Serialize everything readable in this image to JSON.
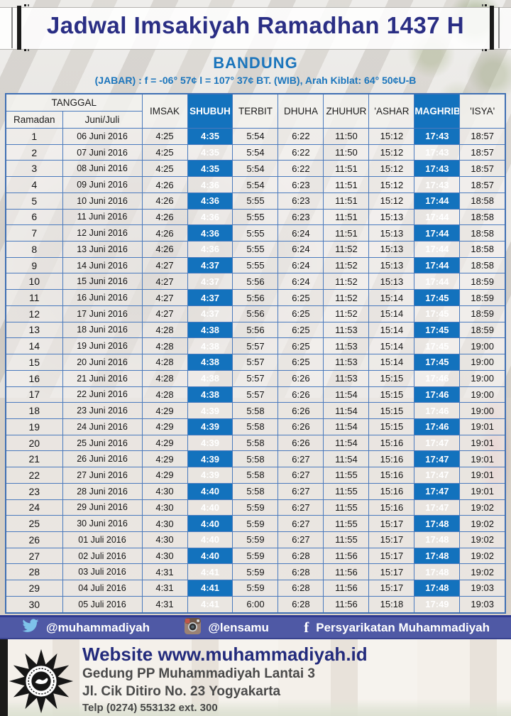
{
  "header": {
    "title": "Jadwal Imsakiyah Ramadhan 1437 H",
    "city": "BANDUNG",
    "coordinates_line": "(JABAR) : f = -06° 57¢  l = 107° 37¢  BT. (WIB), Arah Kiblat: 64° 50¢U-B"
  },
  "table": {
    "group_header": "TANGGAL",
    "sub_headers": [
      "Ramadan",
      "Juni/Juli"
    ],
    "time_columns": [
      "IMSAK",
      "SHUBUH",
      "TERBIT",
      "DHUHA",
      "ZHUHUR",
      "'ASHAR",
      "MAGHRIB",
      "'ISYA'"
    ],
    "highlighted_columns": [
      "SHUBUH",
      "MAGHRIB"
    ],
    "rows": [
      [
        "1",
        "06 Juni 2016",
        "4:25",
        "4:35",
        "5:54",
        "6:22",
        "11:50",
        "15:12",
        "17:43",
        "18:57"
      ],
      [
        "2",
        "07 Juni 2016",
        "4:25",
        "4:35",
        "5:54",
        "6:22",
        "11:50",
        "15:12",
        "17:43",
        "18:57"
      ],
      [
        "3",
        "08 Juni 2016",
        "4:25",
        "4:35",
        "5:54",
        "6:22",
        "11:51",
        "15:12",
        "17:43",
        "18:57"
      ],
      [
        "4",
        "09 Juni 2016",
        "4:26",
        "4:36",
        "5:54",
        "6:23",
        "11:51",
        "15:12",
        "17:43",
        "18:57"
      ],
      [
        "5",
        "10 Juni 2016",
        "4:26",
        "4:36",
        "5:55",
        "6:23",
        "11:51",
        "15:12",
        "17:44",
        "18:58"
      ],
      [
        "6",
        "11 Juni 2016",
        "4:26",
        "4:36",
        "5:55",
        "6:23",
        "11:51",
        "15:13",
        "17:44",
        "18:58"
      ],
      [
        "7",
        "12 Juni 2016",
        "4:26",
        "4:36",
        "5:55",
        "6:24",
        "11:51",
        "15:13",
        "17:44",
        "18:58"
      ],
      [
        "8",
        "13 Juni 2016",
        "4:26",
        "4:36",
        "5:55",
        "6:24",
        "11:52",
        "15:13",
        "17:44",
        "18:58"
      ],
      [
        "9",
        "14 Juni 2016",
        "4:27",
        "4:37",
        "5:55",
        "6:24",
        "11:52",
        "15:13",
        "17:44",
        "18:58"
      ],
      [
        "10",
        "15 Juni 2016",
        "4:27",
        "4:37",
        "5:56",
        "6:24",
        "11:52",
        "15:13",
        "17:44",
        "18:59"
      ],
      [
        "11",
        "16 Juni 2016",
        "4:27",
        "4:37",
        "5:56",
        "6:25",
        "11:52",
        "15:14",
        "17:45",
        "18:59"
      ],
      [
        "12",
        "17 Juni 2016",
        "4:27",
        "4:37",
        "5:56",
        "6:25",
        "11:52",
        "15:14",
        "17:45",
        "18:59"
      ],
      [
        "13",
        "18 Juni 2016",
        "4:28",
        "4:38",
        "5:56",
        "6:25",
        "11:53",
        "15:14",
        "17:45",
        "18:59"
      ],
      [
        "14",
        "19 Juni 2016",
        "4:28",
        "4:38",
        "5:57",
        "6:25",
        "11:53",
        "15:14",
        "17:45",
        "19:00"
      ],
      [
        "15",
        "20 Juni 2016",
        "4:28",
        "4:38",
        "5:57",
        "6:25",
        "11:53",
        "15:14",
        "17:45",
        "19:00"
      ],
      [
        "16",
        "21 Juni 2016",
        "4:28",
        "4:38",
        "5:57",
        "6:26",
        "11:53",
        "15:15",
        "17:46",
        "19:00"
      ],
      [
        "17",
        "22 Juni 2016",
        "4:28",
        "4:38",
        "5:57",
        "6:26",
        "11:54",
        "15:15",
        "17:46",
        "19:00"
      ],
      [
        "18",
        "23 Juni 2016",
        "4:29",
        "4:39",
        "5:58",
        "6:26",
        "11:54",
        "15:15",
        "17:46",
        "19:00"
      ],
      [
        "19",
        "24 Juni 2016",
        "4:29",
        "4:39",
        "5:58",
        "6:26",
        "11:54",
        "15:15",
        "17:46",
        "19:01"
      ],
      [
        "20",
        "25 Juni 2016",
        "4:29",
        "4:39",
        "5:58",
        "6:26",
        "11:54",
        "15:16",
        "17:47",
        "19:01"
      ],
      [
        "21",
        "26 Juni 2016",
        "4:29",
        "4:39",
        "5:58",
        "6:27",
        "11:54",
        "15:16",
        "17:47",
        "19:01"
      ],
      [
        "22",
        "27 Juni 2016",
        "4:29",
        "4:39",
        "5:58",
        "6:27",
        "11:55",
        "15:16",
        "17:47",
        "19:01"
      ],
      [
        "23",
        "28 Juni 2016",
        "4:30",
        "4:40",
        "5:58",
        "6:27",
        "11:55",
        "15:16",
        "17:47",
        "19:01"
      ],
      [
        "24",
        "29 Juni 2016",
        "4:30",
        "4:40",
        "5:59",
        "6:27",
        "11:55",
        "15:16",
        "17:47",
        "19:02"
      ],
      [
        "25",
        "30 Juni 2016",
        "4:30",
        "4:40",
        "5:59",
        "6:27",
        "11:55",
        "15:17",
        "17:48",
        "19:02"
      ],
      [
        "26",
        "01 Juli 2016",
        "4:30",
        "4:40",
        "5:59",
        "6:27",
        "11:55",
        "15:17",
        "17:48",
        "19:02"
      ],
      [
        "27",
        "02 Juli 2016",
        "4:30",
        "4:40",
        "5:59",
        "6:28",
        "11:56",
        "15:17",
        "17:48",
        "19:02"
      ],
      [
        "28",
        "03 Juli 2016",
        "4:31",
        "4:41",
        "5:59",
        "6:28",
        "11:56",
        "15:17",
        "17:48",
        "19:02"
      ],
      [
        "29",
        "04 Juli 2016",
        "4:31",
        "4:41",
        "5:59",
        "6:28",
        "11:56",
        "15:17",
        "17:48",
        "19:03"
      ],
      [
        "30",
        "05 Juli 2016",
        "4:31",
        "4:41",
        "6:00",
        "6:28",
        "11:56",
        "15:18",
        "17:49",
        "19:03"
      ]
    ]
  },
  "social_bar": {
    "twitter_handle": "@muhammadiyah",
    "instagram_handle": "@lensamu",
    "facebook_name": "Persyarikatan Muhammadiyah"
  },
  "footer": {
    "website": "Website www.muhammadiyah.id",
    "address_line1": "Gedung PP Muhammadiyah Lantai 3",
    "address_line2": "Jl. Cik Ditiro No. 23 Yogyakarta",
    "phone": "Telp (0274) 553132 ext. 300"
  },
  "icons": {
    "twitter": "twitter-bird-icon",
    "instagram": "instagram-camera-icon",
    "facebook": "facebook-f-icon",
    "logo": "muhammadiyah-sun-logo"
  },
  "colors": {
    "accent_blue": "#1372bd",
    "title_navy": "#2a2e84",
    "subtitle_blue": "#1b75bc",
    "social_bar_blue": "#4f59a5",
    "table_border": "#4a7abd"
  }
}
